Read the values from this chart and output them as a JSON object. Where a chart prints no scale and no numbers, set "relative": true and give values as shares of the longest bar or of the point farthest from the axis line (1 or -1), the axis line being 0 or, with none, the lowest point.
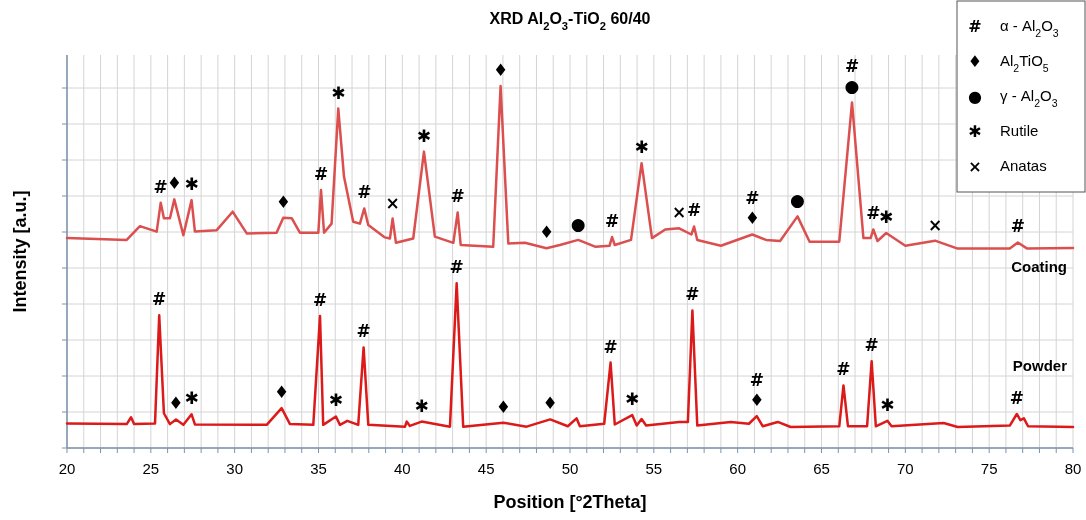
{
  "chart_data": {
    "type": "line",
    "title": "XRD Al$_{2}$O$_{3}$-TiO$_{2}$ 60/40",
    "xlabel": "Position [°2Theta]",
    "ylabel": "Intensity [a.u.]",
    "relative": true,
    "grid": true,
    "marker": "none",
    "line_style": "solid",
    "xlim": [
      20,
      80
    ],
    "xticks": [
      20,
      {
        "value": 21,
        "label": null
      },
      {
        "value": 22,
        "label": null
      },
      {
        "value": 23,
        "label": null
      },
      {
        "value": 24,
        "label": null
      },
      25,
      {
        "value": 26,
        "label": null
      },
      {
        "value": 27,
        "label": null
      },
      {
        "value": 28,
        "label": null
      },
      {
        "value": 29,
        "label": null
      },
      30,
      {
        "value": 31,
        "label": null
      },
      {
        "value": 32,
        "label": null
      },
      {
        "value": 33,
        "label": null
      },
      {
        "value": 34,
        "label": null
      },
      35,
      {
        "value": 36,
        "label": null
      },
      {
        "value": 37,
        "label": null
      },
      {
        "value": 38,
        "label": null
      },
      {
        "value": 39,
        "label": null
      },
      40,
      {
        "value": 41,
        "label": null
      },
      {
        "value": 42,
        "label": null
      },
      {
        "value": 43,
        "label": null
      },
      {
        "value": 44,
        "label": null
      },
      45,
      {
        "value": 46,
        "label": null
      },
      {
        "value": 47,
        "label": null
      },
      {
        "value": 48,
        "label": null
      },
      {
        "value": 49,
        "label": null
      },
      50,
      {
        "value": 51,
        "label": null
      },
      {
        "value": 52,
        "label": null
      },
      {
        "value": 53,
        "label": null
      },
      {
        "value": 54,
        "label": null
      },
      55,
      {
        "value": 56,
        "label": null
      },
      {
        "value": 57,
        "label": null
      },
      {
        "value": 58,
        "label": null
      },
      {
        "value": 59,
        "label": null
      },
      60,
      {
        "value": 61,
        "label": null
      },
      {
        "value": 62,
        "label": null
      },
      {
        "value": 63,
        "label": null
      },
      {
        "value": 64,
        "label": null
      },
      65,
      {
        "value": 66,
        "label": null
      },
      {
        "value": 67,
        "label": null
      },
      {
        "value": 68,
        "label": null
      },
      {
        "value": 69,
        "label": null
      },
      70,
      {
        "value": 71,
        "label": null
      },
      {
        "value": 72,
        "label": null
      },
      {
        "value": 73,
        "label": null
      },
      {
        "value": 74,
        "label": null
      },
      75,
      {
        "value": 76,
        "label": null
      },
      {
        "value": 77,
        "label": null
      },
      {
        "value": 78,
        "label": null
      },
      {
        "value": 79,
        "label": null
      },
      80
    ],
    "series": [
      {
        "name": "Coating",
        "color": "#db4f4f",
        "x": [
          20,
          23.56,
          24.35,
          25.35,
          25.59,
          25.78,
          26.14,
          26.4,
          26.94,
          27.43,
          27.63,
          28.93,
          29.88,
          30.72,
          32.5,
          32.9,
          33.4,
          33.89,
          34.99,
          35.15,
          35.33,
          35.78,
          36.18,
          36.52,
          37.07,
          37.47,
          37.73,
          37.97,
          38.96,
          39.26,
          39.42,
          39.62,
          40.65,
          41.29,
          41.94,
          43.04,
          43.3,
          43.48,
          45.42,
          45.86,
          46.32,
          47.31,
          48.6,
          49.4,
          50.49,
          51.53,
          52.36,
          52.51,
          52.67,
          53.64,
          54.27,
          54.89,
          55.68,
          56.51,
          57.24,
          57.4,
          57.59,
          59,
          60.87,
          61.7,
          62.53,
          63.57,
          64.29,
          66.06,
          66.82,
          67.5,
          67.93,
          68.09,
          68.34,
          68.86,
          70,
          71.77,
          73.12,
          76.23,
          76.71,
          77.27,
          80
        ],
        "values": [
          0.58,
          0.575,
          0.613,
          0.598,
          0.678,
          0.635,
          0.635,
          0.687,
          0.588,
          0.685,
          0.598,
          0.602,
          0.653,
          0.593,
          0.595,
          0.636,
          0.635,
          0.595,
          0.595,
          0.713,
          0.595,
          0.62,
          0.938,
          0.75,
          0.625,
          0.62,
          0.662,
          0.616,
          0.582,
          0.579,
          0.634,
          0.567,
          0.579,
          0.819,
          0.584,
          0.567,
          0.651,
          0.561,
          0.556,
          1,
          0.565,
          0.567,
          0.552,
          0.561,
          0.575,
          0.556,
          0.559,
          0.583,
          0.561,
          0.575,
          0.787,
          0.58,
          0.604,
          0.607,
          0.59,
          0.612,
          0.575,
          0.559,
          0.59,
          0.575,
          0.572,
          0.64,
          0.57,
          0.57,
          0.955,
          0.58,
          0.58,
          0.604,
          0.572,
          0.594,
          0.559,
          0.573,
          0.551,
          0.551,
          0.568,
          0.551,
          0.553
        ]
      },
      {
        "name": "Powder",
        "color": "#dc1a1a",
        "x": [
          20,
          23.56,
          23.82,
          24,
          25.25,
          25.5,
          25.78,
          26.14,
          26.5,
          26.94,
          27.43,
          27.63,
          31.91,
          32.8,
          33.3,
          34.69,
          35.09,
          35.28,
          36.04,
          36.28,
          36.72,
          37.37,
          37.69,
          37.97,
          40.16,
          40.26,
          40.45,
          41.15,
          42.84,
          43.24,
          43.63,
          46.02,
          47.41,
          48.82,
          49.87,
          50.39,
          50.59,
          52.04,
          52.42,
          52.67,
          53.71,
          53.98,
          54.27,
          54.54,
          56.51,
          57.03,
          57.3,
          57.59,
          59.59,
          60.67,
          61.14,
          61.5,
          62.39,
          63.16,
          66.06,
          66.31,
          66.58,
          67.72,
          67.99,
          68.24,
          68.93,
          69.18,
          72.29,
          73.12,
          76.23,
          76.65,
          76.86,
          77.07,
          77.32,
          80
        ],
        "values": [
          0.068,
          0.066,
          0.085,
          0.066,
          0.068,
          0.367,
          0.096,
          0.066,
          0.079,
          0.064,
          0.093,
          0.065,
          0.064,
          0.11,
          0.066,
          0.064,
          0.365,
          0.064,
          0.087,
          0.064,
          0.075,
          0.064,
          0.278,
          0.064,
          0.059,
          0.073,
          0.061,
          0.073,
          0.059,
          0.455,
          0.059,
          0.07,
          0.059,
          0.079,
          0.06,
          0.082,
          0.06,
          0.067,
          0.236,
          0.065,
          0.091,
          0.062,
          0.08,
          0.062,
          0.072,
          0.072,
          0.38,
          0.062,
          0.072,
          0.067,
          0.088,
          0.06,
          0.072,
          0.058,
          0.06,
          0.173,
          0.06,
          0.06,
          0.24,
          0.06,
          0.075,
          0.06,
          0.069,
          0.058,
          0.062,
          0.094,
          0.077,
          0.082,
          0.06,
          0.058
        ]
      }
    ],
    "annotations": [
      "# α - Al$_{2}$O$_{3}$",
      "♦ Al$_{2}$TiO$_{5}$",
      "● γ - Al$_{2}$O$_{3}$",
      "✱ Rutile",
      "× Anatas",
      {
        "text": "#",
        "x": 25.59,
        "y": 0.678
      },
      {
        "text": "♦",
        "x": 26.4,
        "y": 0.687
      },
      {
        "text": "✱",
        "x": 27.43,
        "y": 0.685
      },
      {
        "text": "♦",
        "x": 32.9,
        "y": 0.636
      },
      {
        "text": "#",
        "x": 35.15,
        "y": 0.713
      },
      {
        "text": "✱",
        "x": 36.18,
        "y": 0.938
      },
      {
        "text": "#",
        "x": 37.73,
        "y": 0.662
      },
      {
        "text": "×",
        "x": 39.42,
        "y": 0.634
      },
      {
        "text": "✱",
        "x": 41.29,
        "y": 0.819
      },
      {
        "text": "#",
        "x": 43.3,
        "y": 0.651
      },
      {
        "text": "♦",
        "x": 45.86,
        "y": 1
      },
      {
        "text": "♦",
        "x": 48.6,
        "y": 0.552
      },
      {
        "text": "●",
        "x": 50.49,
        "y": 0.575
      },
      {
        "text": "#",
        "x": 52.51,
        "y": 0.583
      },
      {
        "text": "✱",
        "x": 54.27,
        "y": 0.787
      },
      {
        "text": "×",
        "x": 56.51,
        "y": 0.607
      },
      {
        "text": "#",
        "x": 57.4,
        "y": 0.612
      },
      {
        "text": "♦",
        "x": 60.87,
        "y": 0.59
      },
      {
        "text": "#",
        "x": 60.87,
        "y": 0.59
      },
      {
        "text": "●",
        "x": 63.57,
        "y": 0.64
      },
      {
        "text": "●",
        "x": 66.82,
        "y": 0.955
      },
      {
        "text": "#",
        "x": 66.82,
        "y": 0.955
      },
      {
        "text": "#",
        "x": 68.09,
        "y": 0.604
      },
      {
        "text": "✱",
        "x": 68.86,
        "y": 0.594
      },
      {
        "text": "×",
        "x": 71.77,
        "y": 0.573
      },
      {
        "text": "#",
        "x": 76.71,
        "y": 0.568
      },
      {
        "text": "#",
        "x": 25.5,
        "y": 0.367
      },
      {
        "text": "♦",
        "x": 26.5,
        "y": 0.079
      },
      {
        "text": "✱",
        "x": 27.43,
        "y": 0.093
      },
      {
        "text": "♦",
        "x": 32.8,
        "y": 0.11
      },
      {
        "text": "#",
        "x": 35.09,
        "y": 0.365
      },
      {
        "text": "✱",
        "x": 36.04,
        "y": 0.087
      },
      {
        "text": "#",
        "x": 37.69,
        "y": 0.278
      },
      {
        "text": "✱",
        "x": 41.15,
        "y": 0.073
      },
      {
        "text": "#",
        "x": 43.24,
        "y": 0.455
      },
      {
        "text": "♦",
        "x": 46.02,
        "y": 0.07
      },
      {
        "text": "♦",
        "x": 48.82,
        "y": 0.079
      },
      {
        "text": "#",
        "x": 52.42,
        "y": 0.236
      },
      {
        "text": "✱",
        "x": 53.71,
        "y": 0.091
      },
      {
        "text": "#",
        "x": 57.3,
        "y": 0.38
      },
      {
        "text": "♦",
        "x": 61.14,
        "y": 0.088
      },
      {
        "text": "#",
        "x": 61.14,
        "y": 0.088
      },
      {
        "text": "#",
        "x": 66.31,
        "y": 0.173
      },
      {
        "text": "#",
        "x": 67.99,
        "y": 0.24
      },
      {
        "text": "✱",
        "x": 68.93,
        "y": 0.075
      },
      {
        "text": "#",
        "x": 76.65,
        "y": 0.094
      }
    ]
  }
}
